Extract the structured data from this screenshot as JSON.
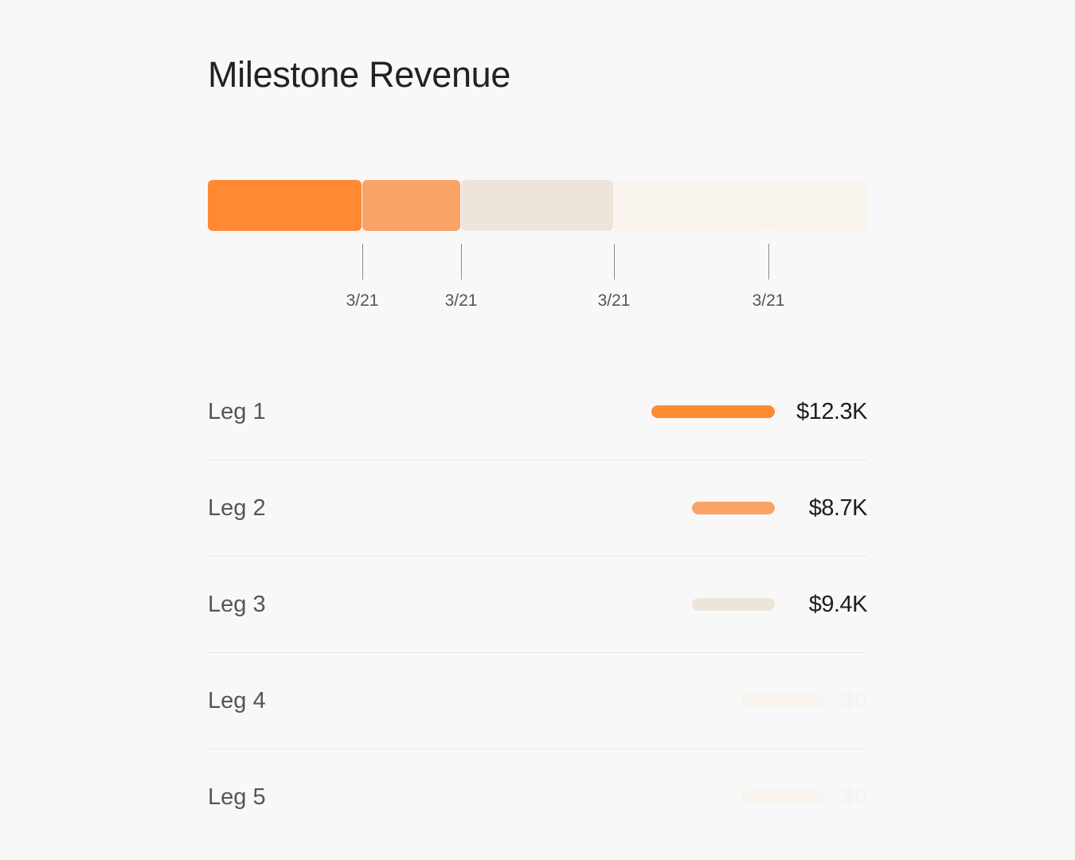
{
  "title": "Milestone Revenue",
  "stack": {
    "segments": [
      {
        "leg": "Leg 1",
        "color": "#FF8A33",
        "share": 0.234
      },
      {
        "leg": "Leg 2",
        "color": "#F9A366",
        "share": 0.15
      },
      {
        "leg": "Leg 3",
        "color": "#EEE5DA",
        "share": 0.232
      },
      {
        "leg": "Leg 4",
        "color": "#F8F3ED",
        "share": 0.234
      },
      {
        "leg": "Leg 5",
        "color": "#F8F3ED",
        "share": 0.15
      }
    ],
    "ticks": [
      "3/21",
      "3/21",
      "3/21",
      "3/21"
    ]
  },
  "legs": [
    {
      "name": "Leg 1",
      "amount": "$12.3K",
      "value": 12.3,
      "color": "#FF8A33"
    },
    {
      "name": "Leg 2",
      "amount": "$8.7K",
      "value": 8.7,
      "color": "#F9A366"
    },
    {
      "name": "Leg 3",
      "amount": "$9.4K",
      "value": 9.4,
      "color": "#EEE5DA"
    },
    {
      "name": "Leg 4",
      "amount": "$0",
      "value": 0,
      "color": "#F8F3ED"
    },
    {
      "name": "Leg 5",
      "amount": "$0",
      "value": 0,
      "color": "#F8F3ED"
    }
  ]
}
